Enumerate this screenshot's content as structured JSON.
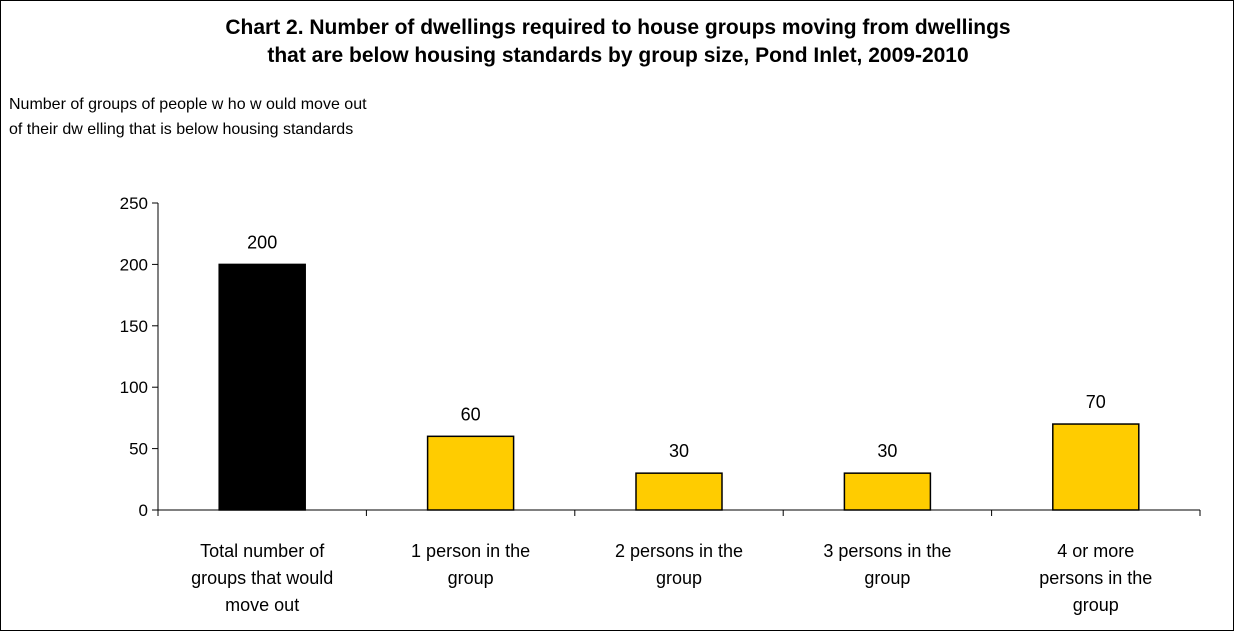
{
  "chart_data": {
    "type": "bar",
    "title_lines": [
      "Chart 2. Number of dwellings required to house groups moving from dwellings",
      "that are below housing standards by group size, Pond Inlet, 2009-2010"
    ],
    "ylabel_lines": [
      "Number of groups of people w ho w ould move out",
      "of their dw elling that is below  housing standards"
    ],
    "categories": [
      "Total number of groups that would move out",
      "1 person in the group",
      "2 persons in the group",
      "3 persons in the group",
      "4 or more persons in the group"
    ],
    "category_lines": [
      [
        "Total number of",
        "groups that would",
        "move out"
      ],
      [
        "1 person in the",
        "group"
      ],
      [
        "2 persons in the",
        "group"
      ],
      [
        "3 persons in the",
        "group"
      ],
      [
        "4 or more",
        "persons in the",
        "group"
      ]
    ],
    "values": [
      200,
      60,
      30,
      30,
      70
    ],
    "data_labels": [
      "200",
      "60",
      "30",
      "30",
      "70"
    ],
    "bar_colors": [
      "#000000",
      "#FFCC00",
      "#FFCC00",
      "#FFCC00",
      "#FFCC00"
    ],
    "ylim": [
      0,
      250
    ],
    "yticks": [
      0,
      50,
      100,
      150,
      200,
      250
    ],
    "grid": false,
    "legend": "none"
  }
}
